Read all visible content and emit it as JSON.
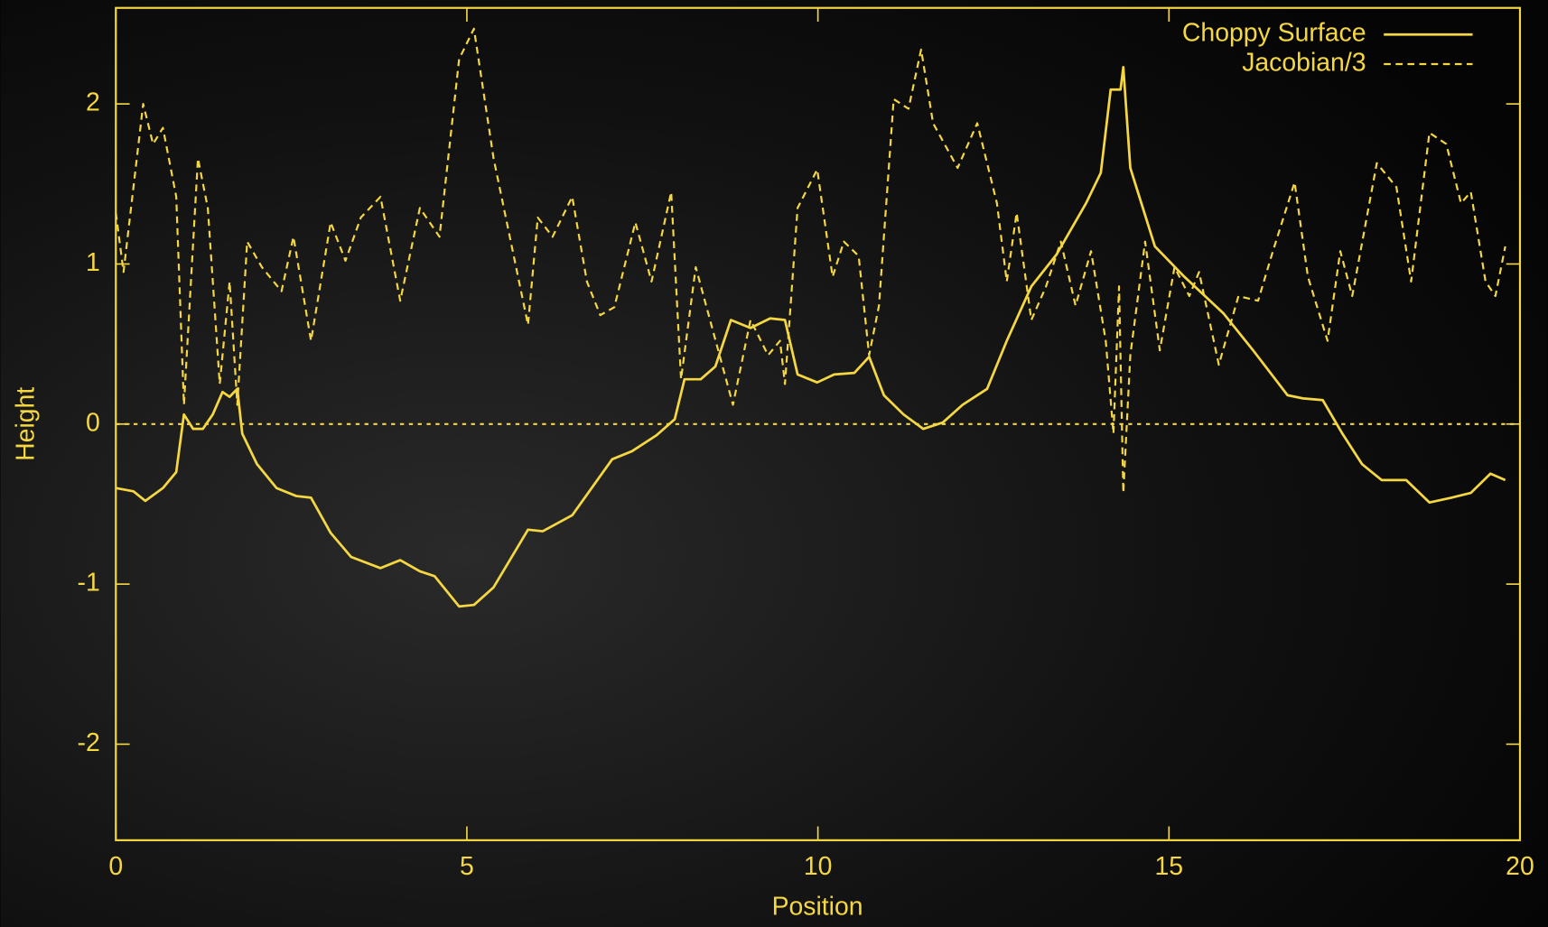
{
  "chart_data": {
    "type": "line",
    "xlabel": "Position",
    "ylabel": "Height",
    "xlim": [
      0,
      20
    ],
    "ylim": [
      -2.6,
      2.6
    ],
    "xticks": [
      0,
      5,
      10,
      15,
      20
    ],
    "yticks": [
      -2,
      -1,
      0,
      1,
      2
    ],
    "zeroaxis": true,
    "legend": "top right",
    "axis_color": "#f5d742",
    "series": [
      {
        "name": "Choppy Surface",
        "color": "#f5d742",
        "dash": false,
        "x": [
          0,
          0.25,
          0.42,
          0.67,
          0.86,
          0.97,
          1.1,
          1.24,
          1.38,
          1.52,
          1.62,
          1.73,
          1.8,
          2.01,
          2.29,
          2.57,
          2.78,
          3.06,
          3.35,
          3.77,
          4.05,
          4.33,
          4.54,
          4.89,
          5.1,
          5.38,
          5.87,
          6.08,
          6.5,
          7.07,
          7.35,
          7.7,
          7.96,
          8.1,
          8.33,
          8.54,
          8.76,
          9.04,
          9.32,
          9.53,
          9.71,
          9.99,
          10.23,
          10.52,
          10.73,
          10.94,
          11.22,
          11.5,
          11.78,
          12.06,
          12.41,
          12.69,
          13.04,
          13.4,
          13.82,
          14.03,
          14.17,
          14.31,
          14.35,
          14.45,
          14.8,
          15.22,
          15.78,
          16.2,
          16.69,
          16.91,
          17.19,
          17.47,
          17.75,
          18.03,
          18.38,
          18.71,
          19.02,
          19.3,
          19.58,
          19.79
        ],
        "values": [
          -0.4,
          -0.42,
          -0.48,
          -0.4,
          -0.3,
          0.06,
          -0.03,
          -0.03,
          0.06,
          0.2,
          0.17,
          0.22,
          -0.06,
          -0.25,
          -0.4,
          -0.45,
          -0.46,
          -0.68,
          -0.83,
          -0.9,
          -0.85,
          -0.92,
          -0.95,
          -1.14,
          -1.13,
          -1.02,
          -0.66,
          -0.67,
          -0.57,
          -0.22,
          -0.17,
          -0.07,
          0.03,
          0.28,
          0.28,
          0.36,
          0.65,
          0.6,
          0.66,
          0.65,
          0.31,
          0.26,
          0.31,
          0.32,
          0.42,
          0.18,
          0.06,
          -0.03,
          0.01,
          0.12,
          0.22,
          0.52,
          0.86,
          1.06,
          1.38,
          1.57,
          2.09,
          2.09,
          2.23,
          1.6,
          1.11,
          0.92,
          0.69,
          0.46,
          0.18,
          0.16,
          0.15,
          -0.06,
          -0.25,
          -0.35,
          -0.35,
          -0.49,
          -0.46,
          -0.43,
          -0.31,
          -0.35
        ]
      },
      {
        "name": "Jacobian/3",
        "color": "#f5d742",
        "dash": true,
        "x": [
          0,
          0.11,
          0.39,
          0.53,
          0.67,
          0.86,
          0.97,
          1.17,
          1.31,
          1.48,
          1.62,
          1.73,
          1.87,
          2.08,
          2.36,
          2.53,
          2.78,
          3.06,
          3.27,
          3.49,
          3.77,
          4.05,
          4.33,
          4.61,
          4.89,
          5.1,
          5.38,
          5.87,
          6.01,
          6.22,
          6.5,
          6.71,
          6.9,
          7.1,
          7.4,
          7.63,
          7.91,
          8.05,
          8.26,
          8.79,
          9.04,
          9.29,
          9.46,
          9.53,
          9.71,
          9.99,
          10.21,
          10.37,
          10.58,
          10.73,
          10.87,
          11.08,
          11.29,
          11.47,
          11.64,
          11.99,
          12.27,
          12.55,
          12.69,
          12.83,
          13.04,
          13.25,
          13.46,
          13.67,
          13.89,
          14.1,
          14.21,
          14.29,
          14.35,
          14.45,
          14.66,
          14.87,
          15.08,
          15.29,
          15.43,
          15.71,
          15.99,
          16.27,
          16.48,
          16.79,
          16.98,
          17.26,
          17.44,
          17.61,
          17.96,
          18.24,
          18.45,
          18.71,
          18.95,
          19.16,
          19.3,
          19.51,
          19.65,
          19.79
        ],
        "values": [
          1.32,
          0.95,
          2.0,
          1.75,
          1.85,
          1.42,
          0.12,
          1.66,
          1.35,
          0.25,
          0.89,
          0.12,
          1.14,
          0.98,
          0.83,
          1.17,
          0.52,
          1.26,
          1.02,
          1.29,
          1.42,
          0.77,
          1.35,
          1.17,
          2.28,
          2.47,
          1.66,
          0.62,
          1.29,
          1.17,
          1.42,
          0.89,
          0.68,
          0.73,
          1.26,
          0.89,
          1.45,
          0.28,
          0.98,
          0.12,
          0.65,
          0.43,
          0.52,
          0.25,
          1.35,
          1.59,
          0.92,
          1.14,
          1.05,
          0.43,
          0.74,
          2.03,
          1.97,
          2.34,
          1.88,
          1.6,
          1.88,
          1.38,
          0.89,
          1.32,
          0.65,
          0.86,
          1.14,
          0.74,
          1.08,
          0.52,
          -0.06,
          0.86,
          -0.43,
          0.43,
          1.14,
          0.46,
          0.98,
          0.8,
          0.95,
          0.37,
          0.8,
          0.77,
          1.08,
          1.51,
          0.92,
          0.52,
          1.08,
          0.8,
          1.63,
          1.48,
          0.89,
          1.82,
          1.75,
          1.38,
          1.45,
          0.89,
          0.8,
          1.11
        ]
      }
    ]
  }
}
